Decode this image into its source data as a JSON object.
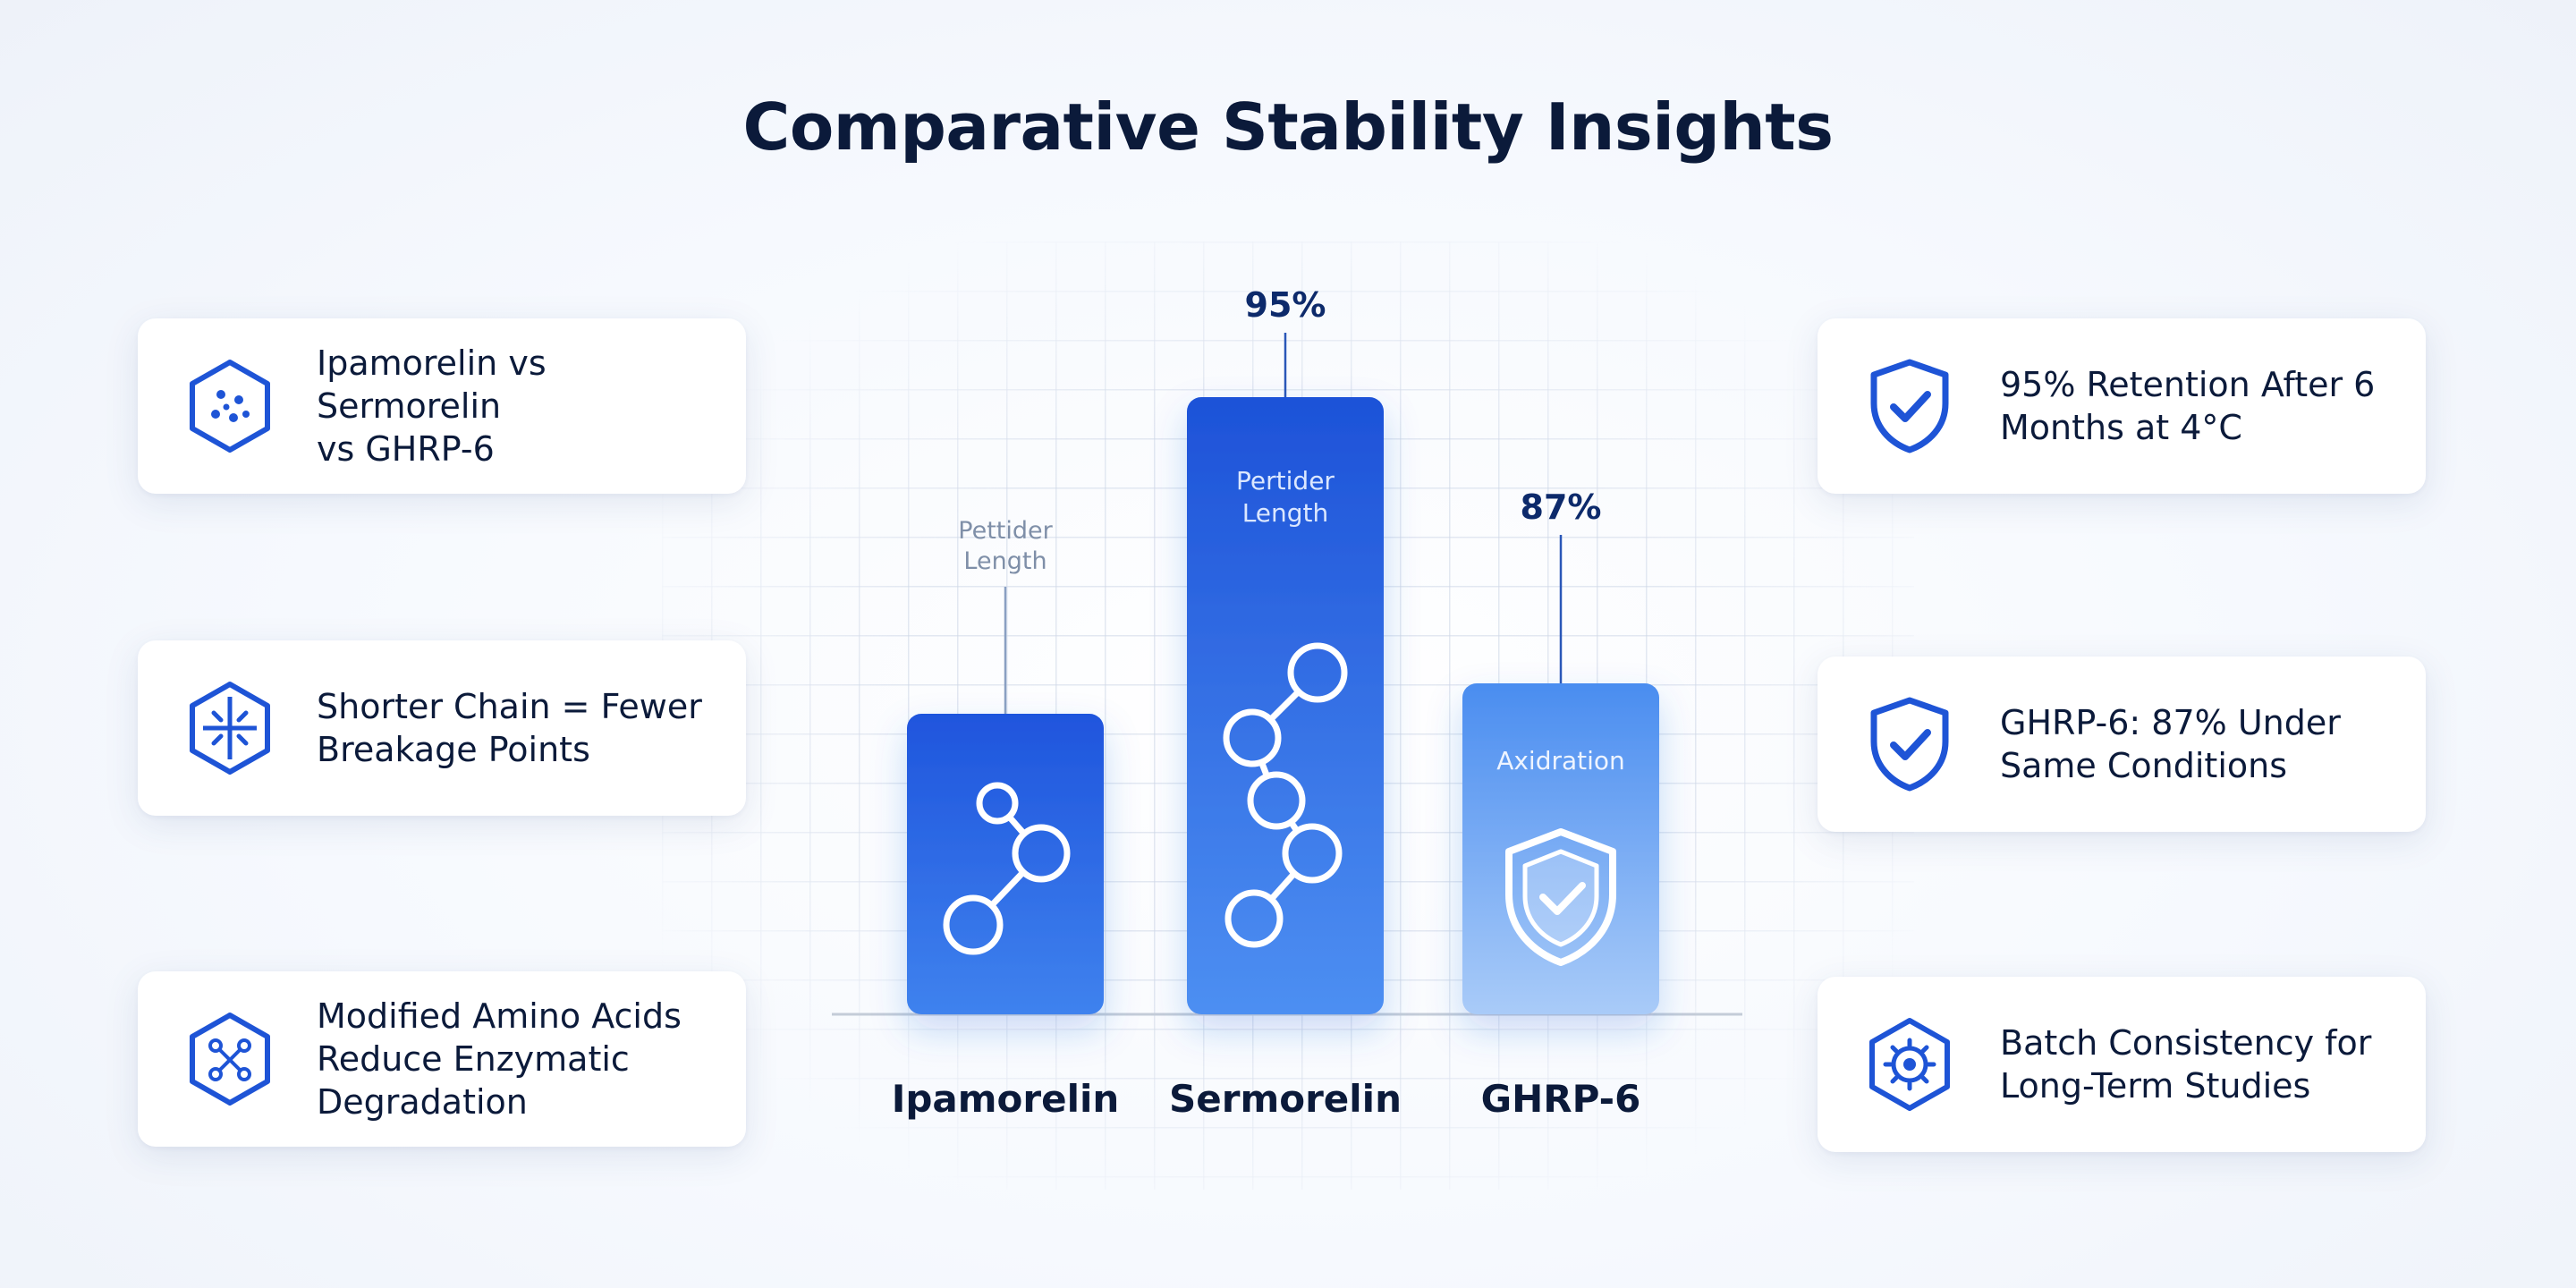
{
  "title": "Comparative Stability Insights",
  "colors": {
    "accent": "#1e54d6",
    "bar_dark": "#1d56e0",
    "bar_light": "#5a9af0",
    "text_dark": "#0b1a3a",
    "card_bg": "#ffffff"
  },
  "left_cards": [
    {
      "icon": "hexagon-dots-icon",
      "text": "Ipamorelin vs Sermorelin\nvs GHRP-6"
    },
    {
      "icon": "hexagon-segments-icon",
      "text": "Shorter Chain = Fewer\nBreakage Points"
    },
    {
      "icon": "hexagon-molecule-icon",
      "text": "Modified Amino Acids\nReduce Enzymatic\nDegradation"
    }
  ],
  "right_cards": [
    {
      "icon": "shield-check-icon",
      "text": "95% Retention After 6\nMonths at 4°C"
    },
    {
      "icon": "shield-check-icon",
      "text": "GHRP-6: 87% Under\nSame Conditions"
    },
    {
      "icon": "hexagon-gear-icon",
      "text": "Batch Consistency for\nLong-Term Studies"
    }
  ],
  "chart_data": {
    "type": "bar",
    "title": "",
    "categories": [
      "Ipamorelin",
      "Sermorelin",
      "GHRP-6"
    ],
    "values": [
      null,
      95,
      87
    ],
    "value_labels": [
      "",
      "95%",
      "87%"
    ],
    "bar_annotations": [
      {
        "text": "Pettider\nLength",
        "placement": "above-bar"
      },
      {
        "text": "Pertider\nLength",
        "placement": "inside-bar"
      },
      {
        "text": "Axidration",
        "placement": "inside-bar"
      }
    ],
    "bar_icons": [
      "molecule-chain-icon",
      "molecule-chain-icon",
      "shield-check-icon"
    ],
    "xlabel": "",
    "ylabel": "",
    "grid": true,
    "legend": "none"
  }
}
